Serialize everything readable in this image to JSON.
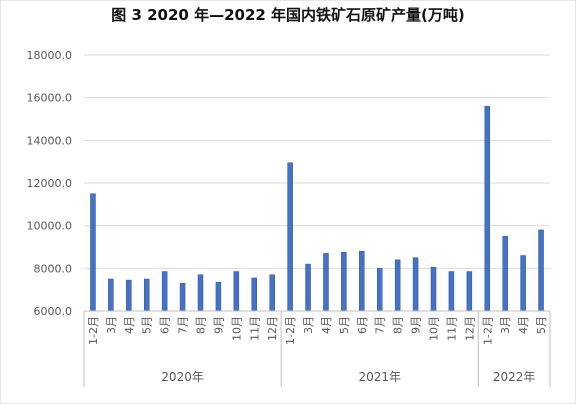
{
  "chart_data": {
    "type": "bar",
    "title": "图 3 2020 年—2022 年国内铁矿石原矿产量(万吨)",
    "categories": [
      "1-2月",
      "3月",
      "4月",
      "5月",
      "6月",
      "7月",
      "8月",
      "9月",
      "10月",
      "11月",
      "12月",
      "1-2月",
      "3月",
      "4月",
      "5月",
      "6月",
      "7月",
      "8月",
      "9月",
      "10月",
      "11月",
      "12月",
      "1-2月",
      "3月",
      "4月",
      "5月"
    ],
    "groups": [
      {
        "label": "2020年",
        "count": 11
      },
      {
        "label": "2021年",
        "count": 11
      },
      {
        "label": "2022年",
        "count": 4
      }
    ],
    "values": [
      11500,
      7500,
      7450,
      7500,
      7850,
      7300,
      7700,
      7350,
      7850,
      7550,
      7700,
      12950,
      8200,
      8700,
      8750,
      8800,
      8000,
      8400,
      8500,
      8050,
      7850,
      7850,
      15600,
      9500,
      8600,
      9800
    ],
    "ylim": [
      6000,
      18000
    ],
    "yticks": [
      "6000.0",
      "8000.0",
      "10000.0",
      "12000.0",
      "14000.0",
      "16000.0",
      "18000.0"
    ],
    "grid": true,
    "colors": {
      "bar": "#4472C4",
      "bar_edge": "#2F5597",
      "grid": "#D9D9D9",
      "axis": "#BFBFBF",
      "text": "#595959"
    }
  }
}
